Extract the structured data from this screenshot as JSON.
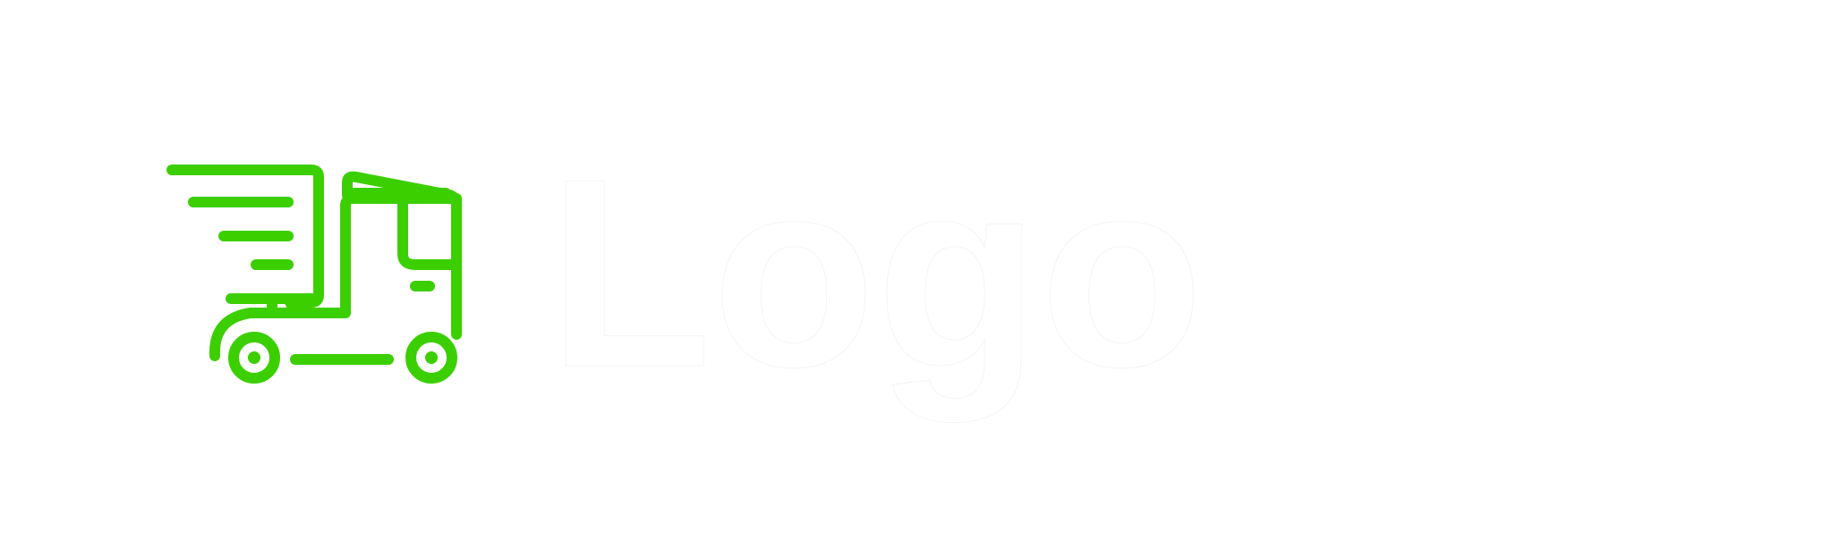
{
  "brand": {
    "accent_color": "#3ccf00",
    "text_color": "#ffffff",
    "icon": "moving-truck-icon",
    "wordmark": "Logo"
  }
}
